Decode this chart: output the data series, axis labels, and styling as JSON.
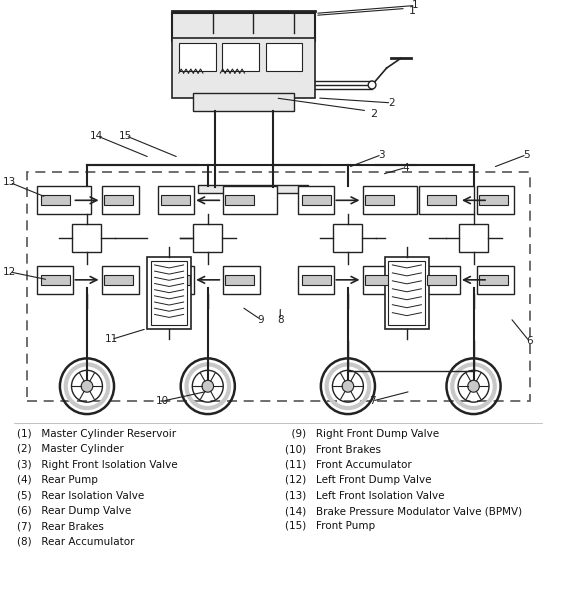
{
  "background_color": "#ffffff",
  "diagram_color": "#222222",
  "legend_left": [
    "(1)   Master Cylinder Reservoir",
    "(2)   Master Cylinder",
    "(3)   Right Front Isolation Valve",
    "(4)   Rear Pump",
    "(5)   Rear Isolation Valve",
    "(6)   Rear Dump Valve",
    "(7)   Rear Brakes",
    "(8)   Rear Accumulator"
  ],
  "legend_right": [
    "  (9)   Right Front Dump Valve",
    "(10)   Front Brakes",
    "(11)   Front Accumulator",
    "(12)   Left Front Dump Valve",
    "(13)   Left Front Isolation Valve",
    "(14)   Brake Pressure Modulator Valve (BPMV)",
    "(15)   Front Pump"
  ],
  "font_size": 7.5
}
